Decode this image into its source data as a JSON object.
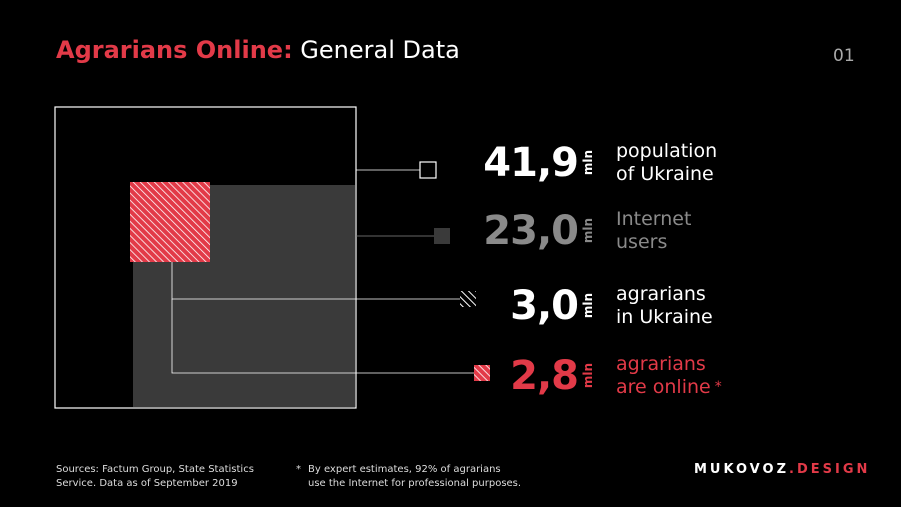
{
  "header": {
    "title_strong": "Agrarians Online:",
    "title_light": " General Data",
    "page_number": "01"
  },
  "stats": [
    {
      "value": "41,9",
      "unit": "mln",
      "label_line1": "population",
      "label_line2": "of Ukraine",
      "color": "#ffffff",
      "marker": "outline-square"
    },
    {
      "value": "23,0",
      "unit": "mln",
      "label_line1": "Internet",
      "label_line2": "users",
      "color": "#8a8a8a",
      "marker": "filled-gray-square"
    },
    {
      "value": "3,0",
      "unit": "mln",
      "label_line1": "agrarians",
      "label_line2": "in Ukraine",
      "color": "#ffffff",
      "marker": "hatched-white-square"
    },
    {
      "value": "2,8",
      "unit": "mln",
      "label_line1": "agrarians",
      "label_line2": "are online",
      "asterisk": "*",
      "color": "#e23a48",
      "marker": "hatched-red-square"
    }
  ],
  "footer": {
    "sources_line1": "Sources: Factum Group, State Statistics",
    "sources_line2": "Service. Data as of September 2019",
    "footnote_mark": "*",
    "footnote_line1": "By expert estimates, 92% of agrarians",
    "footnote_line2": "use the Internet for professional purposes.",
    "brand_main": "MUKOVOZ",
    "brand_dot": ".",
    "brand_sub": "DESIGN"
  },
  "colors": {
    "accent": "#e23a48",
    "internet_gray": "#3a3a3a",
    "background": "#000000"
  }
}
